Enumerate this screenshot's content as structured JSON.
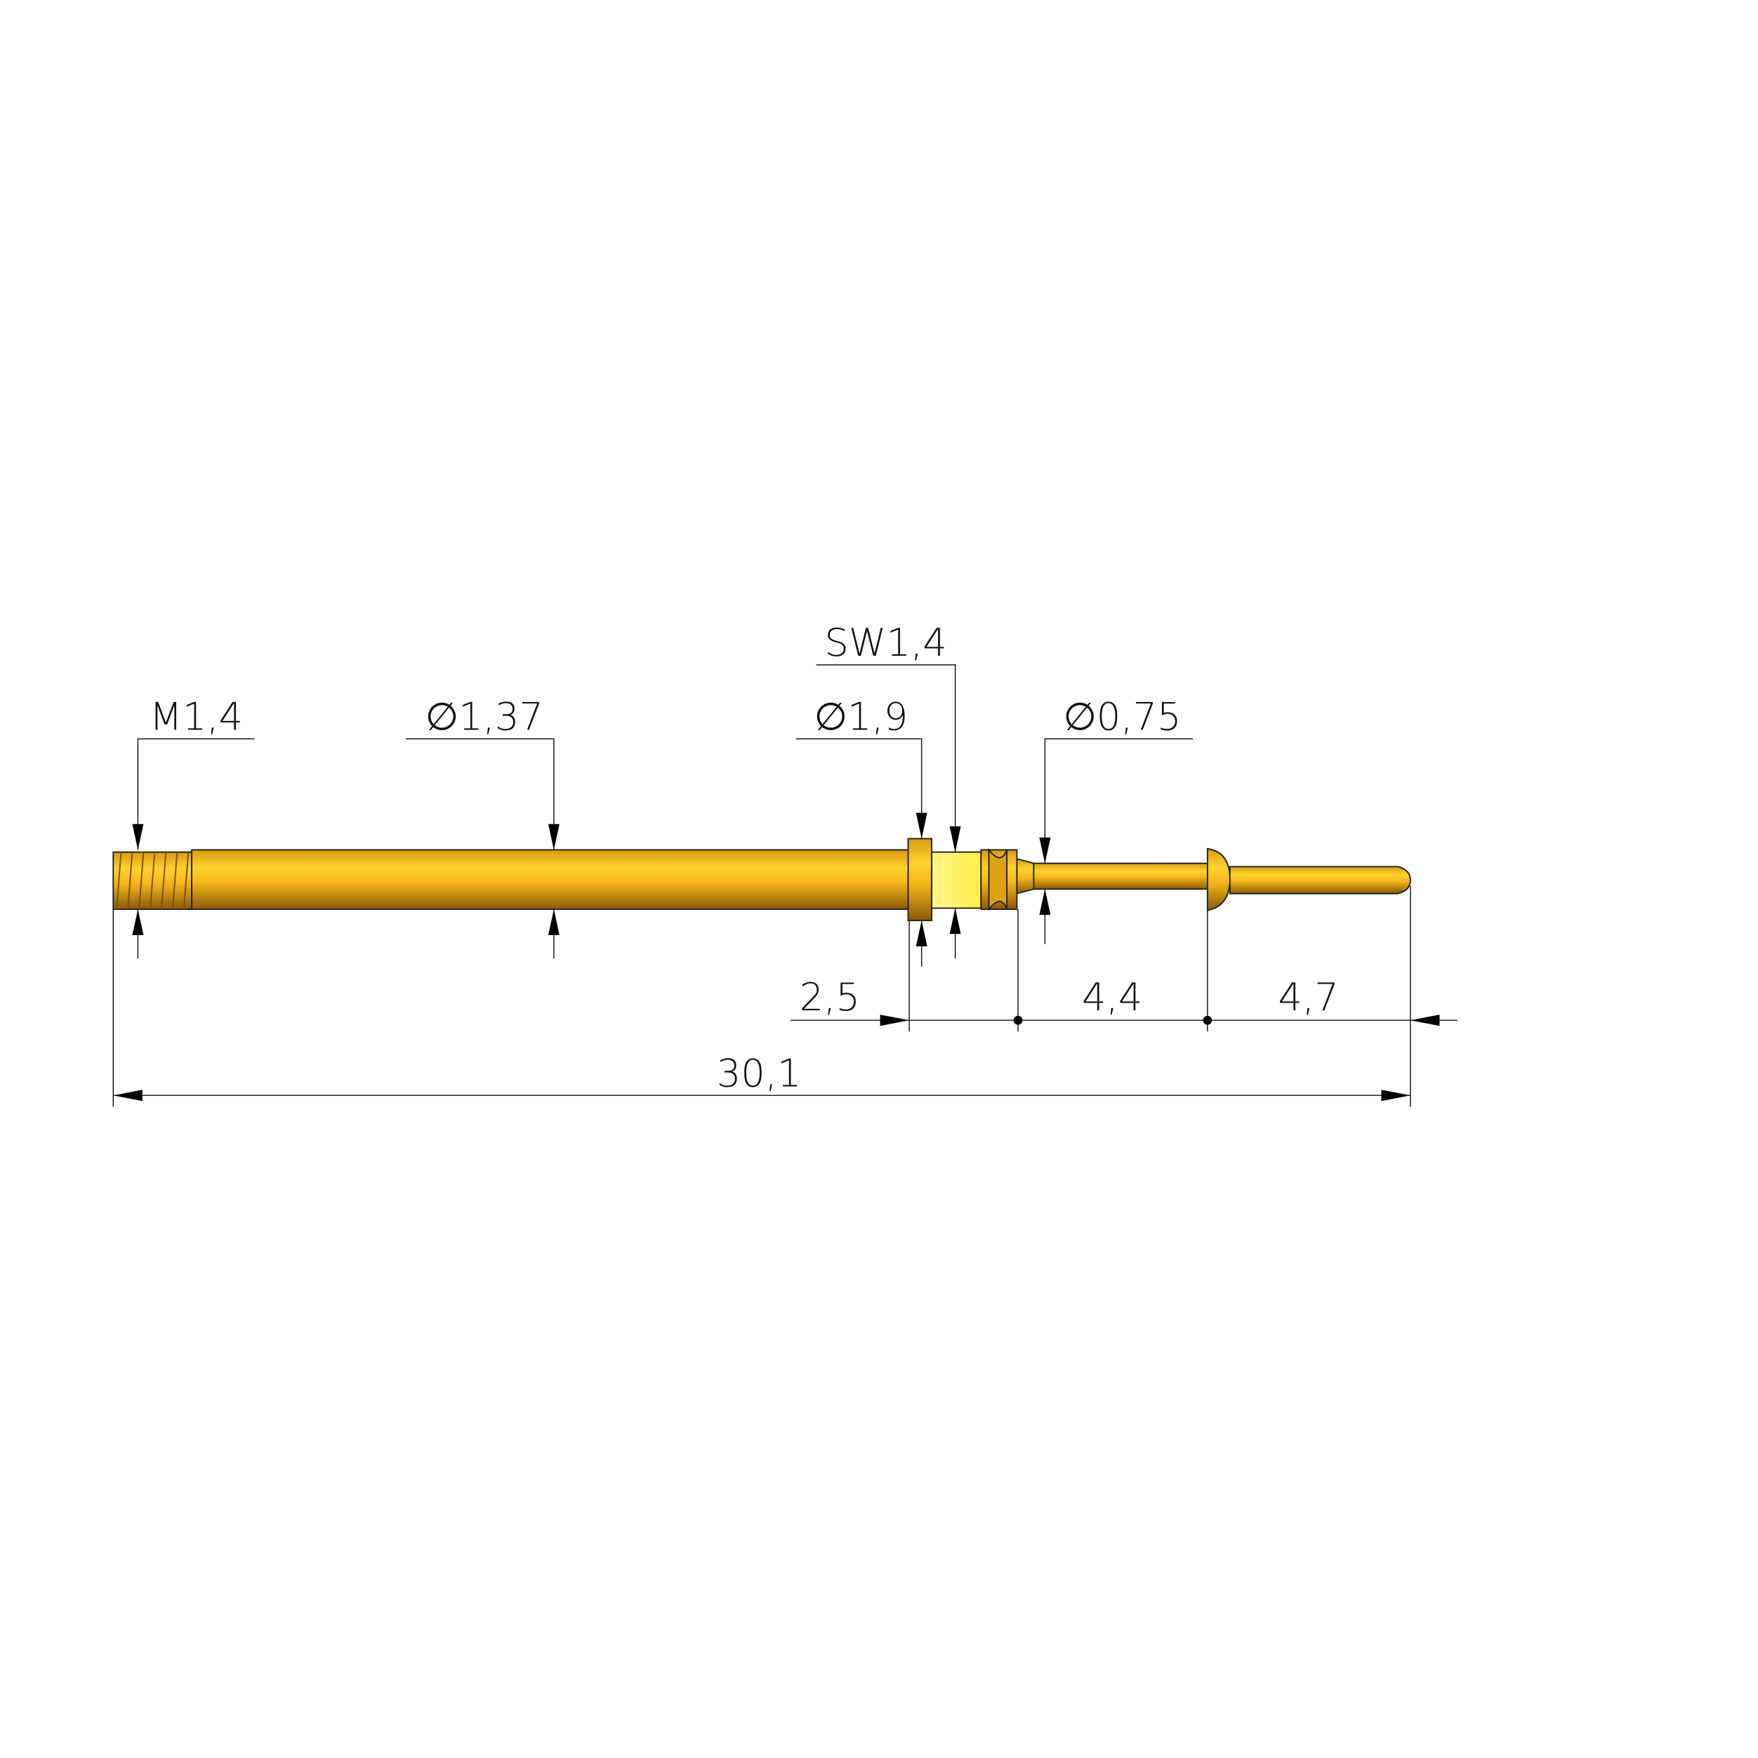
{
  "drawing": {
    "dimensions": {
      "thread": "M1,4",
      "shaft_diameter": "∅1,37",
      "collar_diameter": "∅1,9",
      "wrench_size": "SW1,4",
      "plunger_diameter": "∅0,75",
      "collar_to_neck": "2,5",
      "neck_to_head": "4,4",
      "head_to_tip": "4,7",
      "overall_length": "30,1"
    },
    "colors": {
      "part": "#F2B418",
      "hex_flat": "#FFF35C",
      "line": "#111111"
    }
  }
}
